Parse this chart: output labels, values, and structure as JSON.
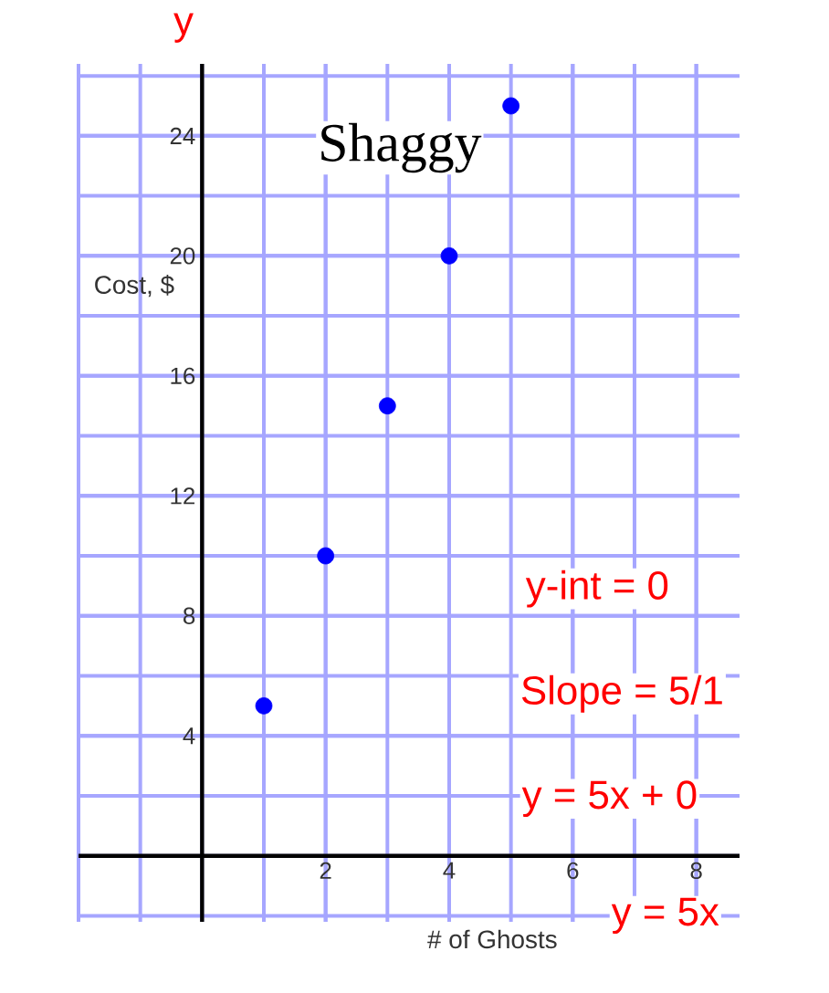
{
  "chart_data": {
    "type": "scatter",
    "title": "Shaggy",
    "xlabel": "# of Ghosts",
    "ylabel": "Cost, $",
    "x": [
      1,
      2,
      3,
      4,
      5
    ],
    "values": [
      5,
      10,
      15,
      20,
      25
    ],
    "color": "#0000ff",
    "marker": "circle",
    "xlim": [
      -2,
      8.7
    ],
    "ylim": [
      -2.2,
      26.4
    ],
    "xticks": [
      2,
      4,
      6,
      8
    ],
    "yticks": [
      4,
      8,
      12,
      16,
      20,
      24
    ],
    "grid": true,
    "annotations": [
      "y",
      "y-int = 0",
      "Slope = 5/1",
      "y = 5x + 0",
      "y = 5x"
    ]
  }
}
